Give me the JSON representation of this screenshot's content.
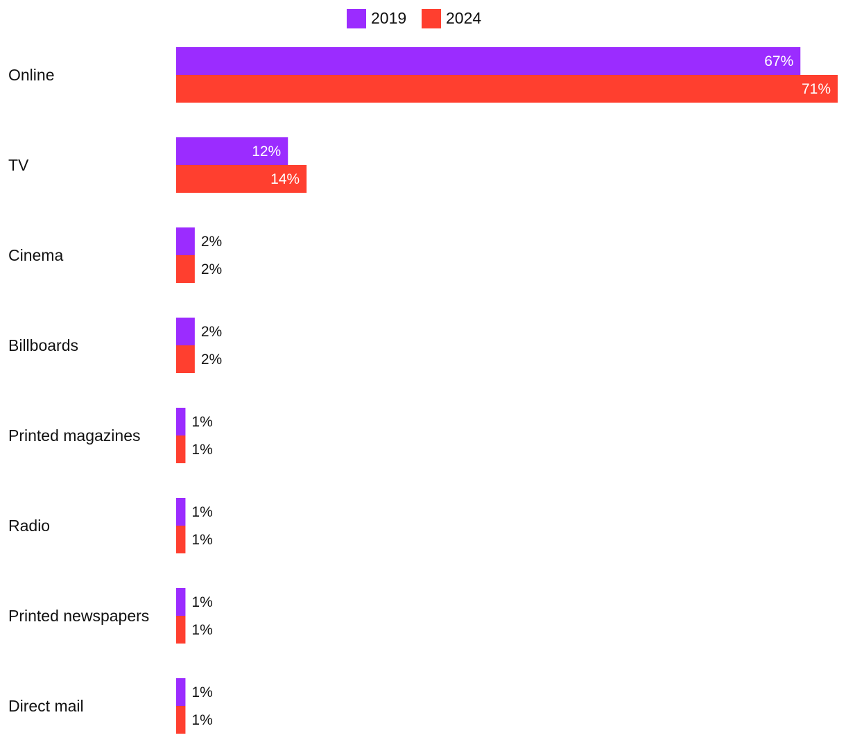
{
  "chart_data": {
    "type": "bar",
    "orientation": "horizontal",
    "title": "",
    "xlabel": "",
    "ylabel": "",
    "xlim": [
      0,
      71
    ],
    "grid": false,
    "legend_position": "top",
    "value_format": "{v}%",
    "categories": [
      "Online",
      "TV",
      "Cinema",
      "Billboards",
      "Printed magazines",
      "Radio",
      "Printed newspapers",
      "Direct mail"
    ],
    "series": [
      {
        "name": "2019",
        "color": "#9B2CFF",
        "values": [
          67,
          12,
          2,
          2,
          1,
          1,
          1,
          1
        ]
      },
      {
        "name": "2024",
        "color": "#FF3F2F",
        "values": [
          71,
          14,
          2,
          2,
          1,
          1,
          1,
          1
        ]
      }
    ]
  }
}
